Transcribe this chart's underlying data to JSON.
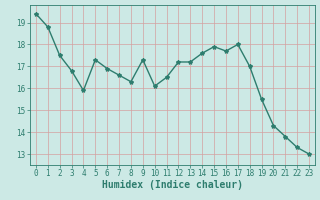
{
  "x": [
    0,
    1,
    2,
    3,
    4,
    5,
    6,
    7,
    8,
    9,
    10,
    11,
    12,
    13,
    14,
    15,
    16,
    17,
    18,
    19,
    20,
    21,
    22,
    23
  ],
  "y": [
    19.4,
    18.8,
    17.5,
    16.8,
    15.9,
    17.3,
    16.9,
    16.6,
    16.3,
    17.3,
    16.1,
    16.5,
    17.2,
    17.2,
    17.6,
    17.9,
    17.7,
    18.0,
    17.0,
    15.5,
    14.3,
    13.8,
    13.3,
    13.0
  ],
  "line_color": "#2e7d6e",
  "marker": "*",
  "marker_size": 3,
  "bg_color": "#cce9e5",
  "grid_color": "#d4a0a0",
  "xlabel": "Humidex (Indice chaleur)",
  "xlabel_fontsize": 7,
  "ylim": [
    12.5,
    19.8
  ],
  "xlim": [
    -0.5,
    23.5
  ],
  "yticks": [
    13,
    14,
    15,
    16,
    17,
    18,
    19
  ],
  "xticks": [
    0,
    1,
    2,
    3,
    4,
    5,
    6,
    7,
    8,
    9,
    10,
    11,
    12,
    13,
    14,
    15,
    16,
    17,
    18,
    19,
    20,
    21,
    22,
    23
  ],
  "tick_fontsize": 5.5,
  "line_width": 1.0
}
